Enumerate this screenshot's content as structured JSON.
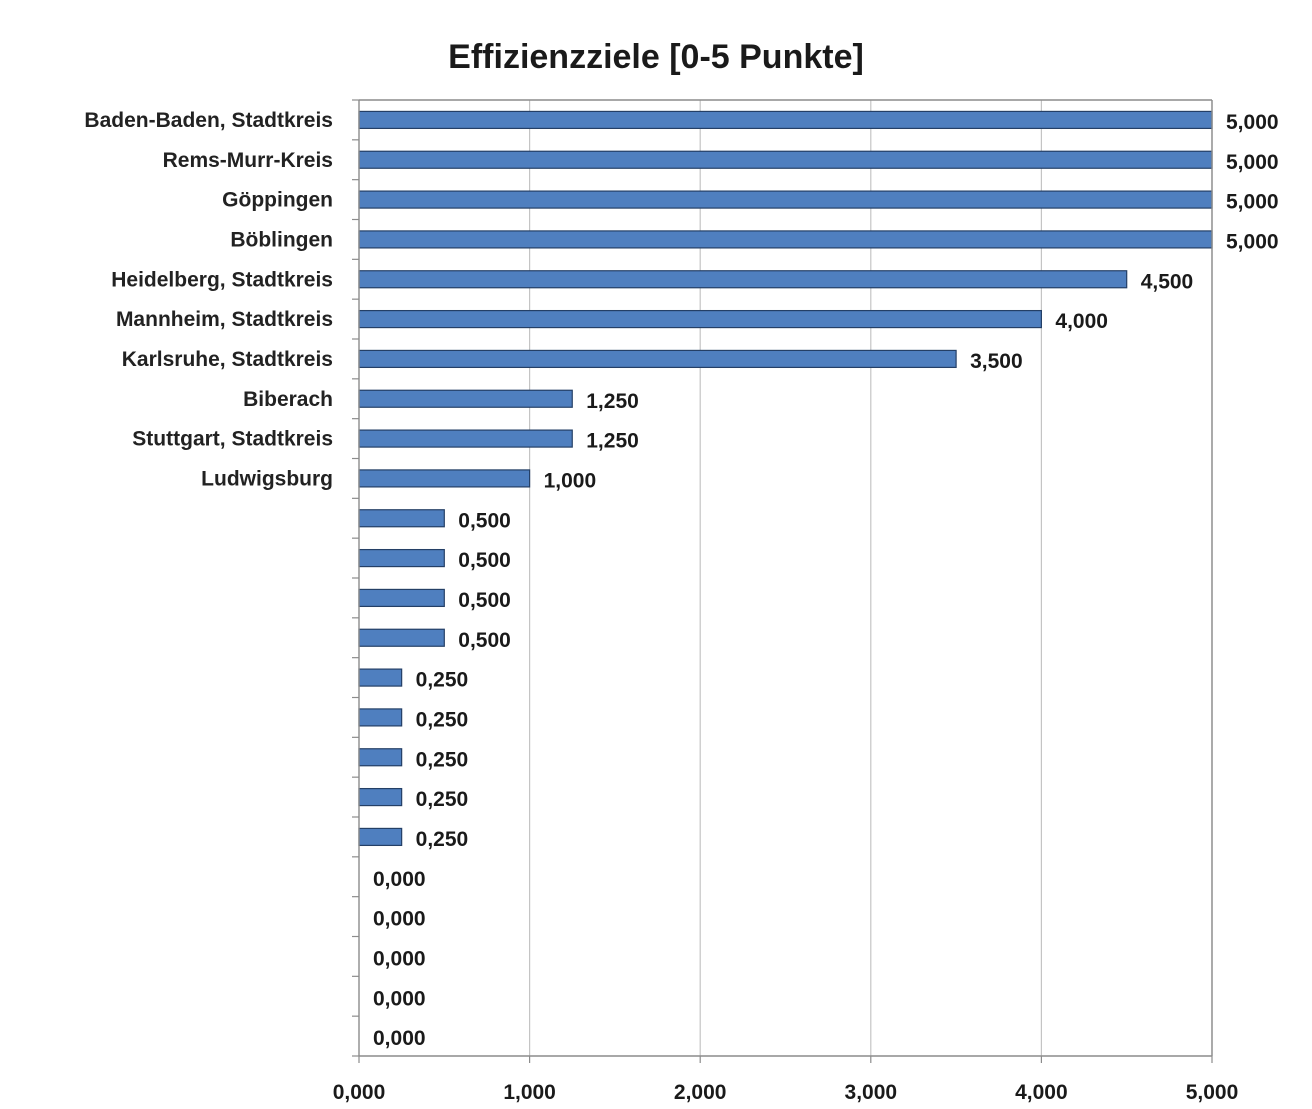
{
  "chart_data": {
    "type": "bar",
    "orientation": "horizontal",
    "title": "Effizienzziele [0-5 Punkte]",
    "xlabel": "",
    "ylabel": "",
    "xlim": [
      0,
      5
    ],
    "x_ticks": [
      "0,000",
      "1,000",
      "2,000",
      "3,000",
      "4,000",
      "5,000"
    ],
    "grid": "vertical",
    "legend": "none",
    "bar_color": "#4f7fbf",
    "bar_edge_color": "#243f66",
    "categories": [
      "Baden-Baden, Stadtkreis",
      "Rems-Murr-Kreis",
      "Göppingen",
      "Böblingen",
      "Heidelberg, Stadtkreis",
      "Mannheim, Stadtkreis",
      "Karlsruhe, Stadtkreis",
      "Biberach",
      "Stuttgart, Stadtkreis",
      "Ludwigsburg",
      "",
      "",
      "",
      "",
      "",
      "",
      "",
      "",
      "",
      "",
      "",
      "",
      "",
      ""
    ],
    "values": [
      5,
      5,
      5,
      5,
      4.5,
      4,
      3.5,
      1.25,
      1.25,
      1,
      0.5,
      0.5,
      0.5,
      0.5,
      0.25,
      0.25,
      0.25,
      0.25,
      0.25,
      0,
      0,
      0,
      0,
      0
    ],
    "value_labels": [
      "5,000",
      "5,000",
      "5,000",
      "5,000",
      "4,500",
      "4,000",
      "3,500",
      "1,250",
      "1,250",
      "1,000",
      "0,500",
      "0,500",
      "0,500",
      "0,500",
      "0,250",
      "0,250",
      "0,250",
      "0,250",
      "0,250",
      "0,000",
      "0,000",
      "0,000",
      "0,000",
      "0,000"
    ]
  }
}
